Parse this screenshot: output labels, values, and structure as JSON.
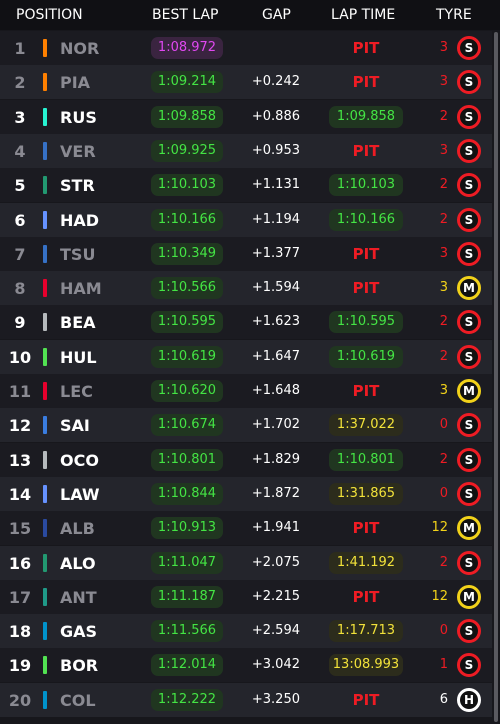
{
  "header": {
    "position": "POSITION",
    "best_lap": "BEST LAP",
    "gap": "GAP",
    "lap_time": "LAP TIME",
    "tyre": "TYRE"
  },
  "rows": [
    {
      "position": 1,
      "color": "#ff8000",
      "driver": "NOR",
      "best_lap": "1:08.972",
      "best_lap_color": "purple",
      "gap": null,
      "lap_time": "PIT",
      "lap_time_style": "pit",
      "tyre_age": 3,
      "compound": "S",
      "tyre_color": "#ee1c24",
      "dimmed": true
    },
    {
      "position": 2,
      "color": "#ff8000",
      "driver": "PIA",
      "best_lap": "1:09.214",
      "best_lap_color": "green",
      "gap": "+0.242",
      "lap_time": "PIT",
      "lap_time_style": "pit",
      "tyre_age": 3,
      "compound": "S",
      "tyre_color": "#ee1c24",
      "dimmed": true
    },
    {
      "position": 3,
      "color": "#27f4d2",
      "driver": "RUS",
      "best_lap": "1:09.858",
      "best_lap_color": "green",
      "gap": "+0.886",
      "lap_time": "1:09.858",
      "lap_time_style": "green",
      "tyre_age": 2,
      "compound": "S",
      "tyre_color": "#ee1c24",
      "dimmed": false
    },
    {
      "position": 4,
      "color": "#3671c6",
      "driver": "VER",
      "best_lap": "1:09.925",
      "best_lap_color": "green",
      "gap": "+0.953",
      "lap_time": "PIT",
      "lap_time_style": "pit",
      "tyre_age": 3,
      "compound": "S",
      "tyre_color": "#ee1c24",
      "dimmed": true
    },
    {
      "position": 5,
      "color": "#229971",
      "driver": "STR",
      "best_lap": "1:10.103",
      "best_lap_color": "green",
      "gap": "+1.131",
      "lap_time": "1:10.103",
      "lap_time_style": "green",
      "tyre_age": 2,
      "compound": "S",
      "tyre_color": "#ee1c24",
      "dimmed": false
    },
    {
      "position": 6,
      "color": "#6692ff",
      "driver": "HAD",
      "best_lap": "1:10.166",
      "best_lap_color": "green",
      "gap": "+1.194",
      "lap_time": "1:10.166",
      "lap_time_style": "green",
      "tyre_age": 2,
      "compound": "S",
      "tyre_color": "#ee1c24",
      "dimmed": false
    },
    {
      "position": 7,
      "color": "#3671c6",
      "driver": "TSU",
      "best_lap": "1:10.349",
      "best_lap_color": "green",
      "gap": "+1.377",
      "lap_time": "PIT",
      "lap_time_style": "pit",
      "tyre_age": 3,
      "compound": "S",
      "tyre_color": "#ee1c24",
      "dimmed": true
    },
    {
      "position": 8,
      "color": "#e8002d",
      "driver": "HAM",
      "best_lap": "1:10.566",
      "best_lap_color": "green",
      "gap": "+1.594",
      "lap_time": "PIT",
      "lap_time_style": "pit",
      "tyre_age": 3,
      "compound": "M",
      "tyre_color": "#f2d21a",
      "dimmed": true
    },
    {
      "position": 9,
      "color": "#b6babd",
      "driver": "BEA",
      "best_lap": "1:10.595",
      "best_lap_color": "green",
      "gap": "+1.623",
      "lap_time": "1:10.595",
      "lap_time_style": "green",
      "tyre_age": 2,
      "compound": "S",
      "tyre_color": "#ee1c24",
      "dimmed": false
    },
    {
      "position": 10,
      "color": "#52e252",
      "driver": "HUL",
      "best_lap": "1:10.619",
      "best_lap_color": "green",
      "gap": "+1.647",
      "lap_time": "1:10.619",
      "lap_time_style": "green",
      "tyre_age": 2,
      "compound": "S",
      "tyre_color": "#ee1c24",
      "dimmed": false
    },
    {
      "position": 11,
      "color": "#e8002d",
      "driver": "LEC",
      "best_lap": "1:10.620",
      "best_lap_color": "green",
      "gap": "+1.648",
      "lap_time": "PIT",
      "lap_time_style": "pit",
      "tyre_age": 3,
      "compound": "M",
      "tyre_color": "#f2d21a",
      "dimmed": true
    },
    {
      "position": 12,
      "color": "#3a7de0",
      "driver": "SAI",
      "best_lap": "1:10.674",
      "best_lap_color": "green",
      "gap": "+1.702",
      "lap_time": "1:37.022",
      "lap_time_style": "yellow",
      "tyre_age": 0,
      "compound": "S",
      "tyre_color": "#ee1c24",
      "dimmed": false
    },
    {
      "position": 13,
      "color": "#b6babd",
      "driver": "OCO",
      "best_lap": "1:10.801",
      "best_lap_color": "green",
      "gap": "+1.829",
      "lap_time": "1:10.801",
      "lap_time_style": "green",
      "tyre_age": 2,
      "compound": "S",
      "tyre_color": "#ee1c24",
      "dimmed": false
    },
    {
      "position": 14,
      "color": "#6692ff",
      "driver": "LAW",
      "best_lap": "1:10.844",
      "best_lap_color": "green",
      "gap": "+1.872",
      "lap_time": "1:31.865",
      "lap_time_style": "yellow",
      "tyre_age": 0,
      "compound": "S",
      "tyre_color": "#ee1c24",
      "dimmed": false
    },
    {
      "position": 15,
      "color": "#2a4aa0",
      "driver": "ALB",
      "best_lap": "1:10.913",
      "best_lap_color": "green",
      "gap": "+1.941",
      "lap_time": "PIT",
      "lap_time_style": "pit",
      "tyre_age": 12,
      "compound": "M",
      "tyre_color": "#f2d21a",
      "dimmed": true
    },
    {
      "position": 16,
      "color": "#229971",
      "driver": "ALO",
      "best_lap": "1:11.047",
      "best_lap_color": "green",
      "gap": "+2.075",
      "lap_time": "1:41.192",
      "lap_time_style": "yellow",
      "tyre_age": 2,
      "compound": "S",
      "tyre_color": "#ee1c24",
      "dimmed": false
    },
    {
      "position": 17,
      "color": "#1f9a88",
      "driver": "ANT",
      "best_lap": "1:11.187",
      "best_lap_color": "green",
      "gap": "+2.215",
      "lap_time": "PIT",
      "lap_time_style": "pit",
      "tyre_age": 12,
      "compound": "M",
      "tyre_color": "#f2d21a",
      "dimmed": true
    },
    {
      "position": 18,
      "color": "#0093cc",
      "driver": "GAS",
      "best_lap": "1:11.566",
      "best_lap_color": "green",
      "gap": "+2.594",
      "lap_time": "1:17.713",
      "lap_time_style": "yellow",
      "tyre_age": 0,
      "compound": "S",
      "tyre_color": "#ee1c24",
      "dimmed": false
    },
    {
      "position": 19,
      "color": "#52e252",
      "driver": "BOR",
      "best_lap": "1:12.014",
      "best_lap_color": "green",
      "gap": "+3.042",
      "lap_time": "13:08.993",
      "lap_time_style": "yellow",
      "tyre_age": 1,
      "compound": "S",
      "tyre_color": "#ee1c24",
      "dimmed": false
    },
    {
      "position": 20,
      "color": "#0093cc",
      "driver": "COL",
      "best_lap": "1:12.222",
      "best_lap_color": "green",
      "gap": "+3.250",
      "lap_time": "PIT",
      "lap_time_style": "pit",
      "tyre_age": 6,
      "compound": "H",
      "tyre_color": "#ffffff",
      "dimmed": true
    }
  ]
}
